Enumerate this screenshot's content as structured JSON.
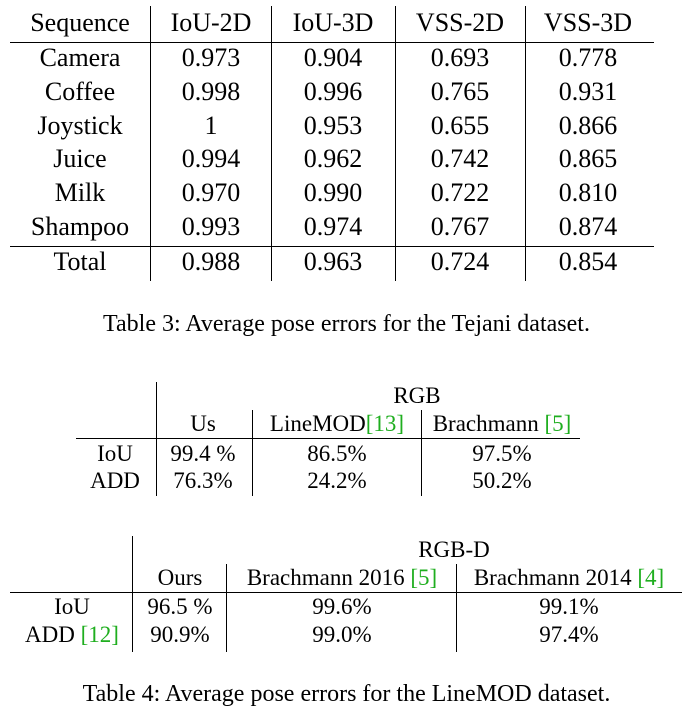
{
  "table3": {
    "headers": [
      "Sequence",
      "IoU-2D",
      "IoU-3D",
      "VSS-2D",
      "VSS-3D"
    ],
    "rows": [
      [
        "Camera",
        "0.973",
        "0.904",
        "0.693",
        "0.778"
      ],
      [
        "Coffee",
        "0.998",
        "0.996",
        "0.765",
        "0.931"
      ],
      [
        "Joystick",
        "1",
        "0.953",
        "0.655",
        "0.866"
      ],
      [
        "Juice",
        "0.994",
        "0.962",
        "0.742",
        "0.865"
      ],
      [
        "Milk",
        "0.970",
        "0.990",
        "0.722",
        "0.810"
      ],
      [
        "Shampoo",
        "0.993",
        "0.974",
        "0.767",
        "0.874"
      ]
    ],
    "total": [
      "Total",
      "0.988",
      "0.963",
      "0.724",
      "0.854"
    ],
    "caption": "Table 3: Average pose errors for the Tejani dataset."
  },
  "table4": {
    "rgb": {
      "group": "RGB",
      "col_us": "Us",
      "col_linemod": "LineMOD",
      "col_linemod_ref": "[13]",
      "col_brachmann": "Brachmann ",
      "col_brachmann_ref": "[5]",
      "rows": [
        [
          "IoU",
          "99.4 %",
          "86.5%",
          "97.5%"
        ],
        [
          "ADD",
          "76.3%",
          "24.2%",
          "50.2%"
        ]
      ]
    },
    "rgbd": {
      "group": "RGB-D",
      "col_ours": "Ours",
      "col_b2016": "Brachmann 2016 ",
      "col_b2016_ref": "[5]",
      "col_b2014": "Brachmann 2014 ",
      "col_b2014_ref": "[4]",
      "row_iou": {
        "label": "IoU",
        "values": [
          "96.5 %",
          "99.6%",
          "99.1%"
        ]
      },
      "row_add": {
        "label": "ADD ",
        "label_ref": "[12]",
        "values": [
          "90.9%",
          "99.0%",
          "97.4%"
        ]
      }
    },
    "caption": "Table 4: Average pose errors for the LineMOD dataset."
  },
  "colors": {
    "citation": "#1fae1f",
    "text": "#000000",
    "rules": "#000000"
  }
}
